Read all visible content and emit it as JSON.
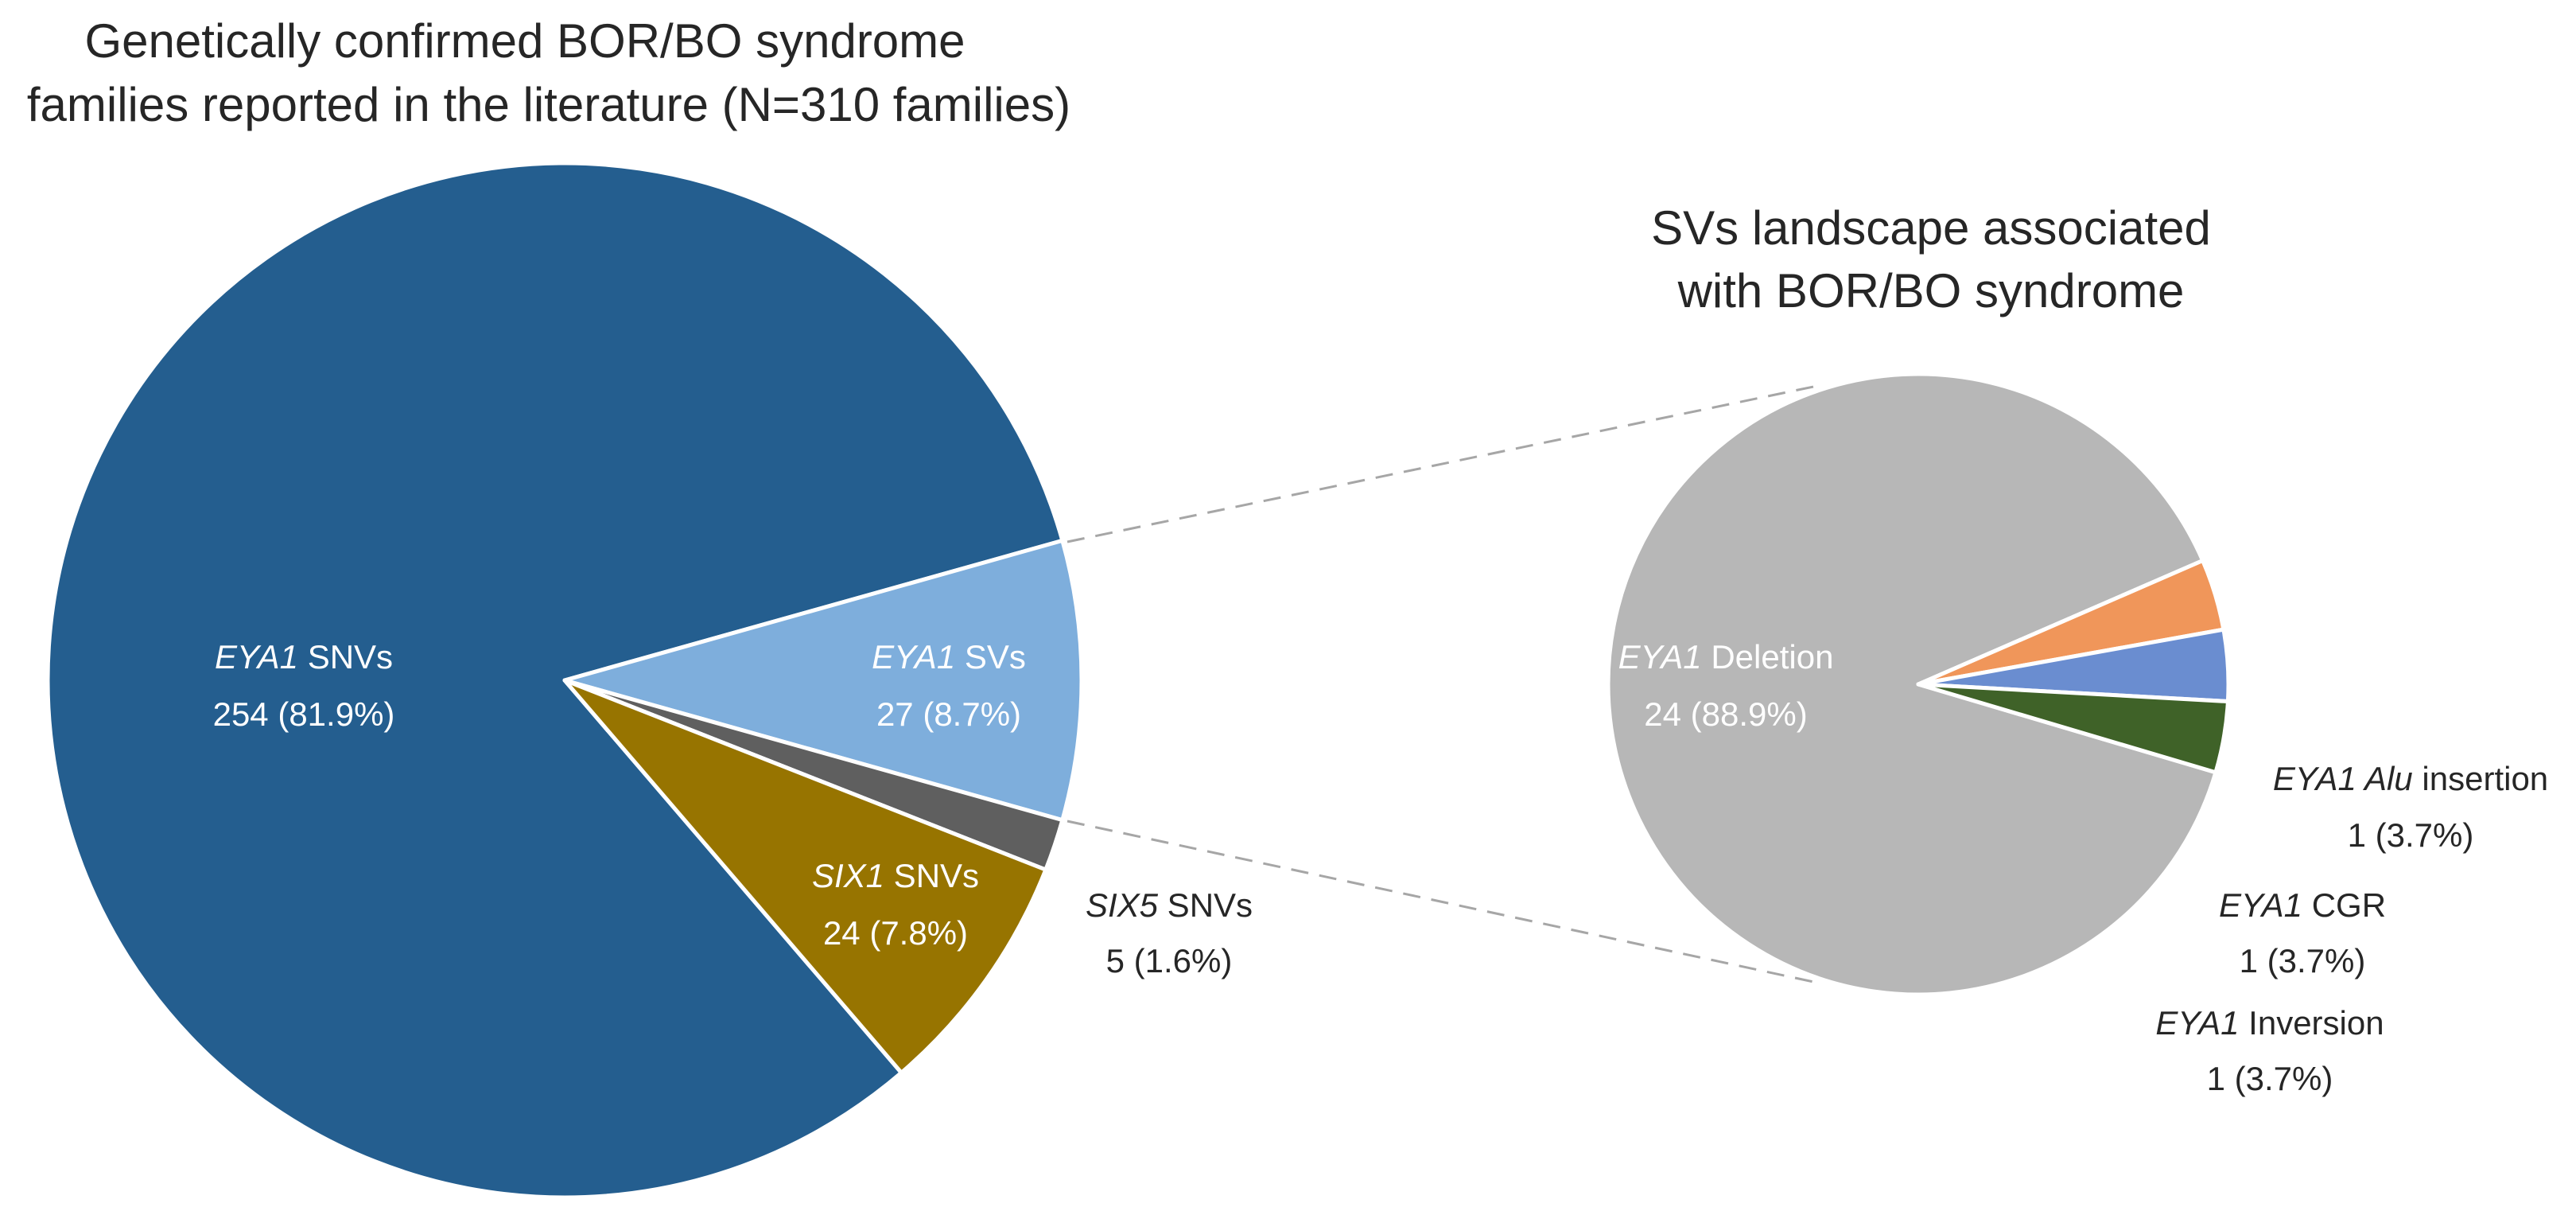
{
  "chart_data": [
    {
      "type": "pie",
      "title_lines": [
        "Genetically confirmed BOR/BO syndrome",
        "families reported in the literature (N=310 families)"
      ],
      "slices": [
        {
          "gene": "EYA1",
          "rest": " SNVs",
          "value": 254,
          "count_label": "254 (81.9%)",
          "color": "#245E8F",
          "label_pos": "inside"
        },
        {
          "gene": "EYA1",
          "rest": " SVs",
          "value": 27,
          "count_label": "27 (8.7%)",
          "color": "#7EAEDC",
          "label_pos": "inside"
        },
        {
          "gene": "SIX5",
          "rest": " SNVs",
          "value": 5,
          "count_label": "5 (1.6%)",
          "color": "#5F5F5F",
          "label_pos": "outside"
        },
        {
          "gene": "SIX1",
          "rest": " SNVs",
          "value": 24,
          "count_label": "24 (7.8%)",
          "color": "#977400",
          "label_pos": "inside"
        }
      ]
    },
    {
      "type": "pie",
      "title_lines": [
        "SVs landscape associated",
        "with BOR/BO syndrome"
      ],
      "slices": [
        {
          "gene": "EYA1",
          "rest": " Deletion",
          "value": 24,
          "count_label": "24 (88.9%)",
          "color": "#B7B7B7",
          "label_pos": "inside"
        },
        {
          "gene": "EYA1",
          "rest": " Inversion",
          "value": 1,
          "count_label": "1 (3.7%)",
          "color": "#F0965A",
          "label_pos": "outside"
        },
        {
          "gene": "EYA1",
          "rest": " CGR",
          "value": 1,
          "count_label": "1 (3.7%)",
          "color": "#6A8DD0",
          "label_pos": "outside"
        },
        {
          "gene": "EYA1 Alu",
          "rest": " insertion",
          "value": 1,
          "count_label": "1 (3.7%)",
          "color": "#3F6228",
          "label_pos": "outside"
        }
      ]
    }
  ]
}
